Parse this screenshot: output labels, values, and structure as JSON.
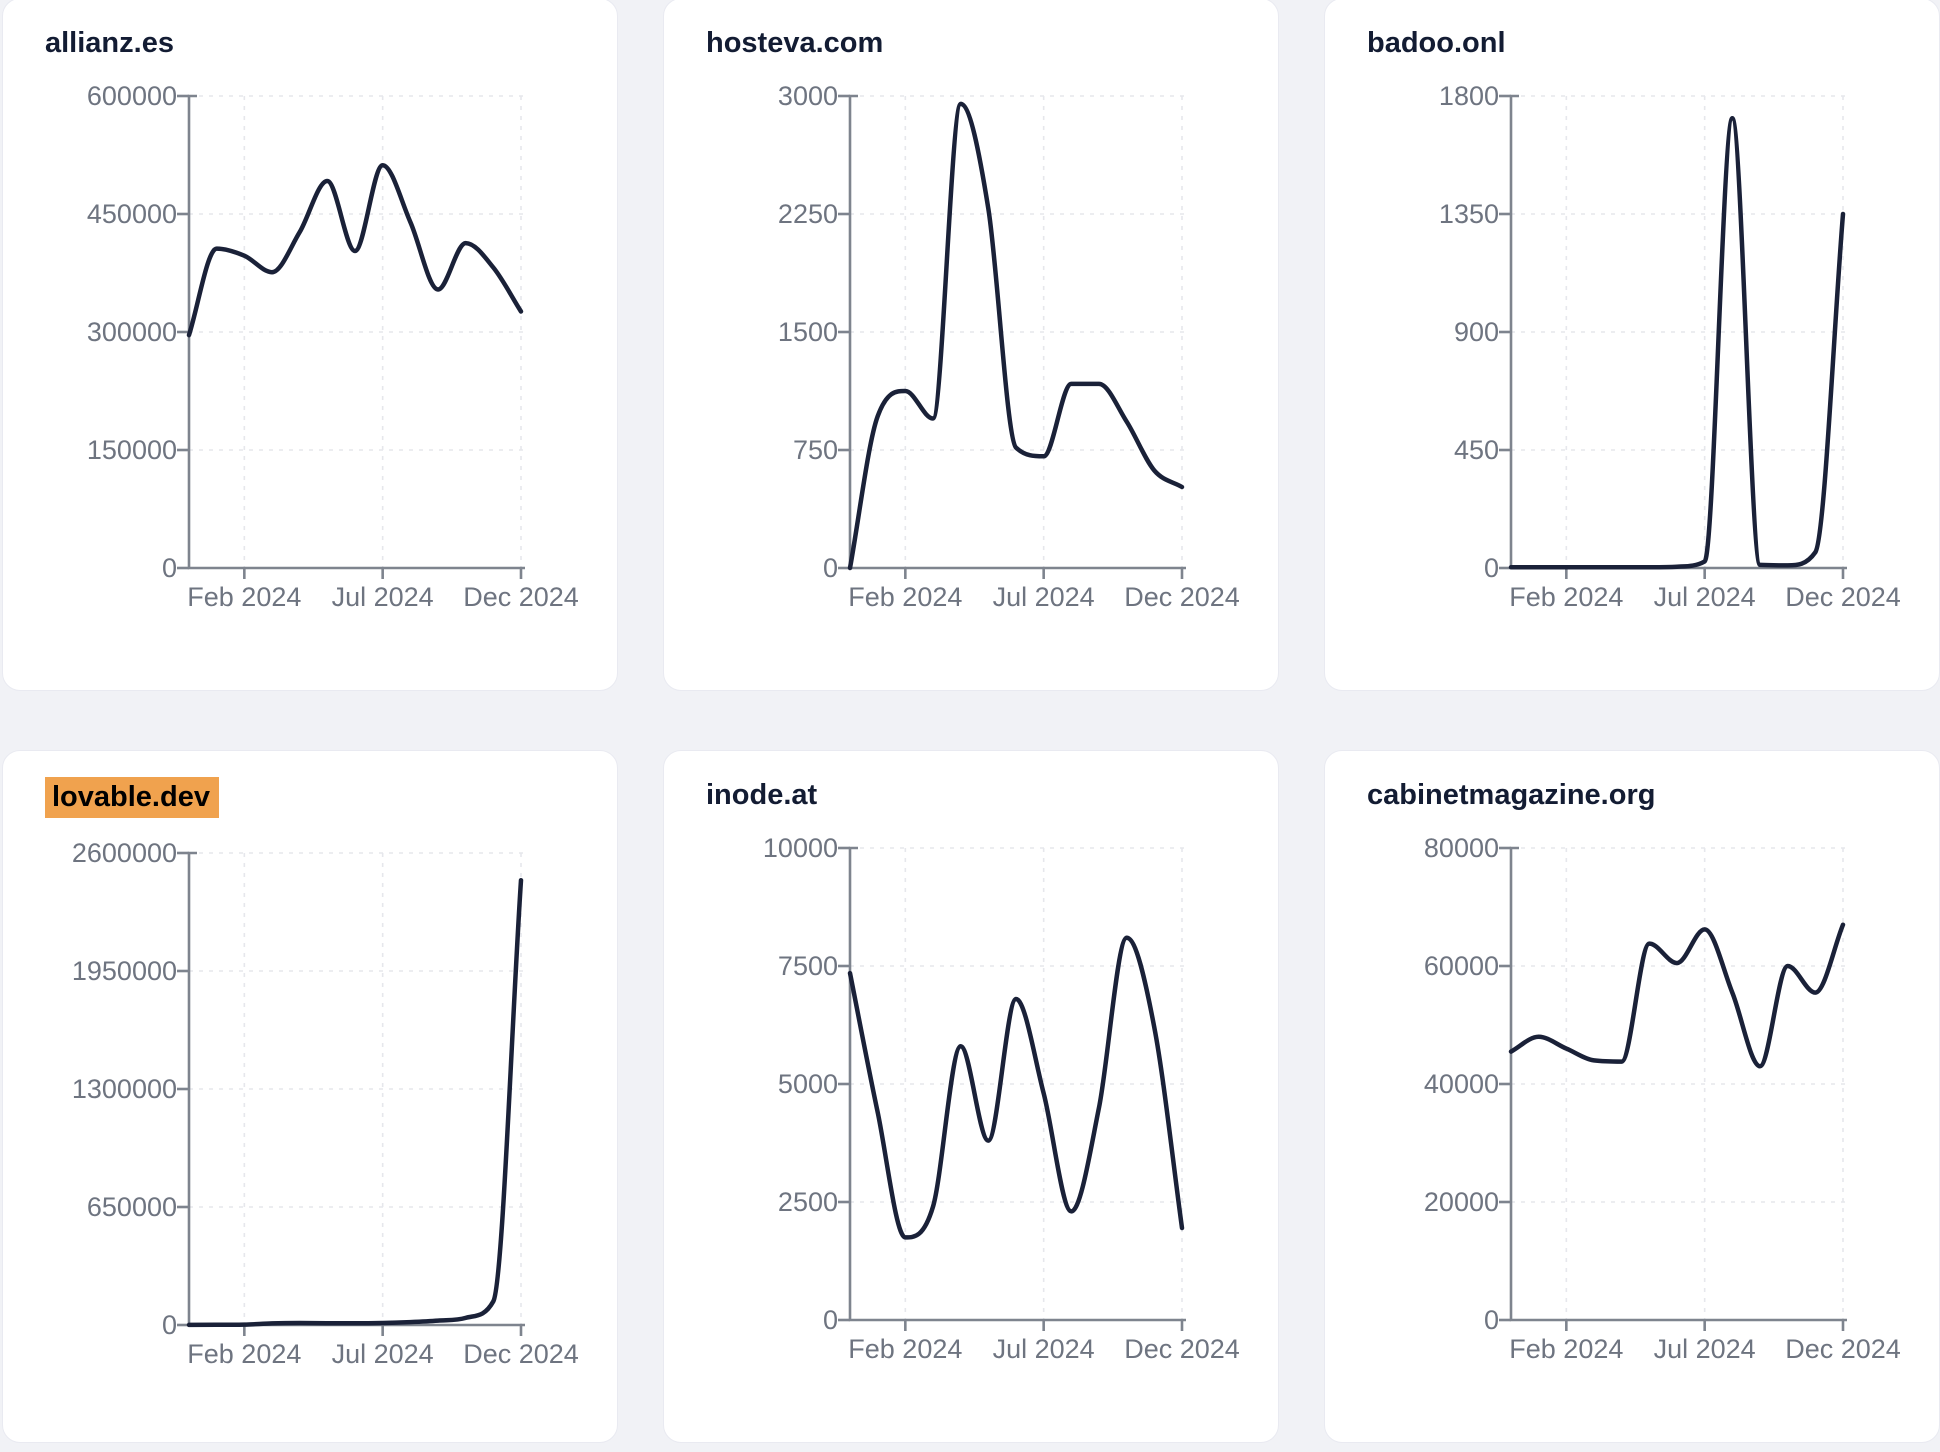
{
  "colors": {
    "page_background": "#f1f2f6",
    "card_background": "#ffffff",
    "card_border": "#e9eaf1",
    "title_text": "#131c33",
    "highlight_background": "#f0a24e",
    "highlight_text": "#000000",
    "line": "#1a2138",
    "axis": "#7e848e",
    "grid": "#e6e7ec",
    "tick_label": "#6e7480"
  },
  "chart_data": {
    "type": "line",
    "description": "Six small-multiple line charts of monthly values per website domain",
    "months": [
      "Dec 2023",
      "Jan 2024",
      "Feb 2024",
      "Mar 2024",
      "Apr 2024",
      "May 2024",
      "Jun 2024",
      "Jul 2024",
      "Aug 2024",
      "Sep 2024",
      "Oct 2024",
      "Nov 2024",
      "Dec 2024"
    ],
    "x_axis": {
      "tick_labels": [
        "Feb 2024",
        "Jul 2024",
        "Dec 2024"
      ],
      "tick_month_indices": [
        2,
        7,
        12
      ]
    },
    "grid": "dashed",
    "legend": "none",
    "charts": [
      {
        "title": "allianz.es",
        "highlight": false,
        "ylim": [
          0,
          600000
        ],
        "y_ticks": [
          0,
          150000,
          300000,
          450000,
          600000
        ],
        "values": [
          296000,
          406000,
          397000,
          376000,
          427000,
          492000,
          403000,
          512000,
          440000,
          354000,
          413000,
          382000,
          326000
        ]
      },
      {
        "title": "hosteva.com",
        "highlight": false,
        "ylim": [
          0,
          3000
        ],
        "y_ticks": [
          0,
          750,
          1500,
          2250,
          3000
        ],
        "values": [
          0,
          965,
          1125,
          950,
          2950,
          2285,
          765,
          710,
          1170,
          1170,
          930,
          620,
          515
        ]
      },
      {
        "title": "badoo.onl",
        "highlight": false,
        "ylim": [
          0,
          1800
        ],
        "y_ticks": [
          0,
          450,
          900,
          1350,
          1800
        ],
        "values": [
          3,
          3,
          3,
          3,
          3,
          3,
          5,
          25,
          1715,
          12,
          10,
          60,
          1350
        ]
      },
      {
        "title": "lovable.dev",
        "highlight": true,
        "ylim": [
          0,
          2600000
        ],
        "y_ticks": [
          0,
          650000,
          1300000,
          1950000,
          2600000
        ],
        "values": [
          500,
          1000,
          2000,
          9000,
          11000,
          10000,
          9500,
          11000,
          16000,
          24000,
          39000,
          130000,
          2450000
        ]
      },
      {
        "title": "inode.at",
        "highlight": false,
        "ylim": [
          0,
          10000
        ],
        "y_ticks": [
          0,
          2500,
          5000,
          7500,
          10000
        ],
        "values": [
          7350,
          4400,
          1750,
          2400,
          5800,
          3800,
          6800,
          4800,
          2300,
          4500,
          8100,
          6200,
          1950
        ]
      },
      {
        "title": "cabinetmagazine.org",
        "highlight": false,
        "ylim": [
          0,
          80000
        ],
        "y_ticks": [
          0,
          20000,
          40000,
          60000,
          80000
        ],
        "values": [
          45500,
          48000,
          46000,
          44000,
          43800,
          63800,
          60500,
          66200,
          55500,
          43000,
          60000,
          55500,
          67000
        ]
      }
    ]
  }
}
